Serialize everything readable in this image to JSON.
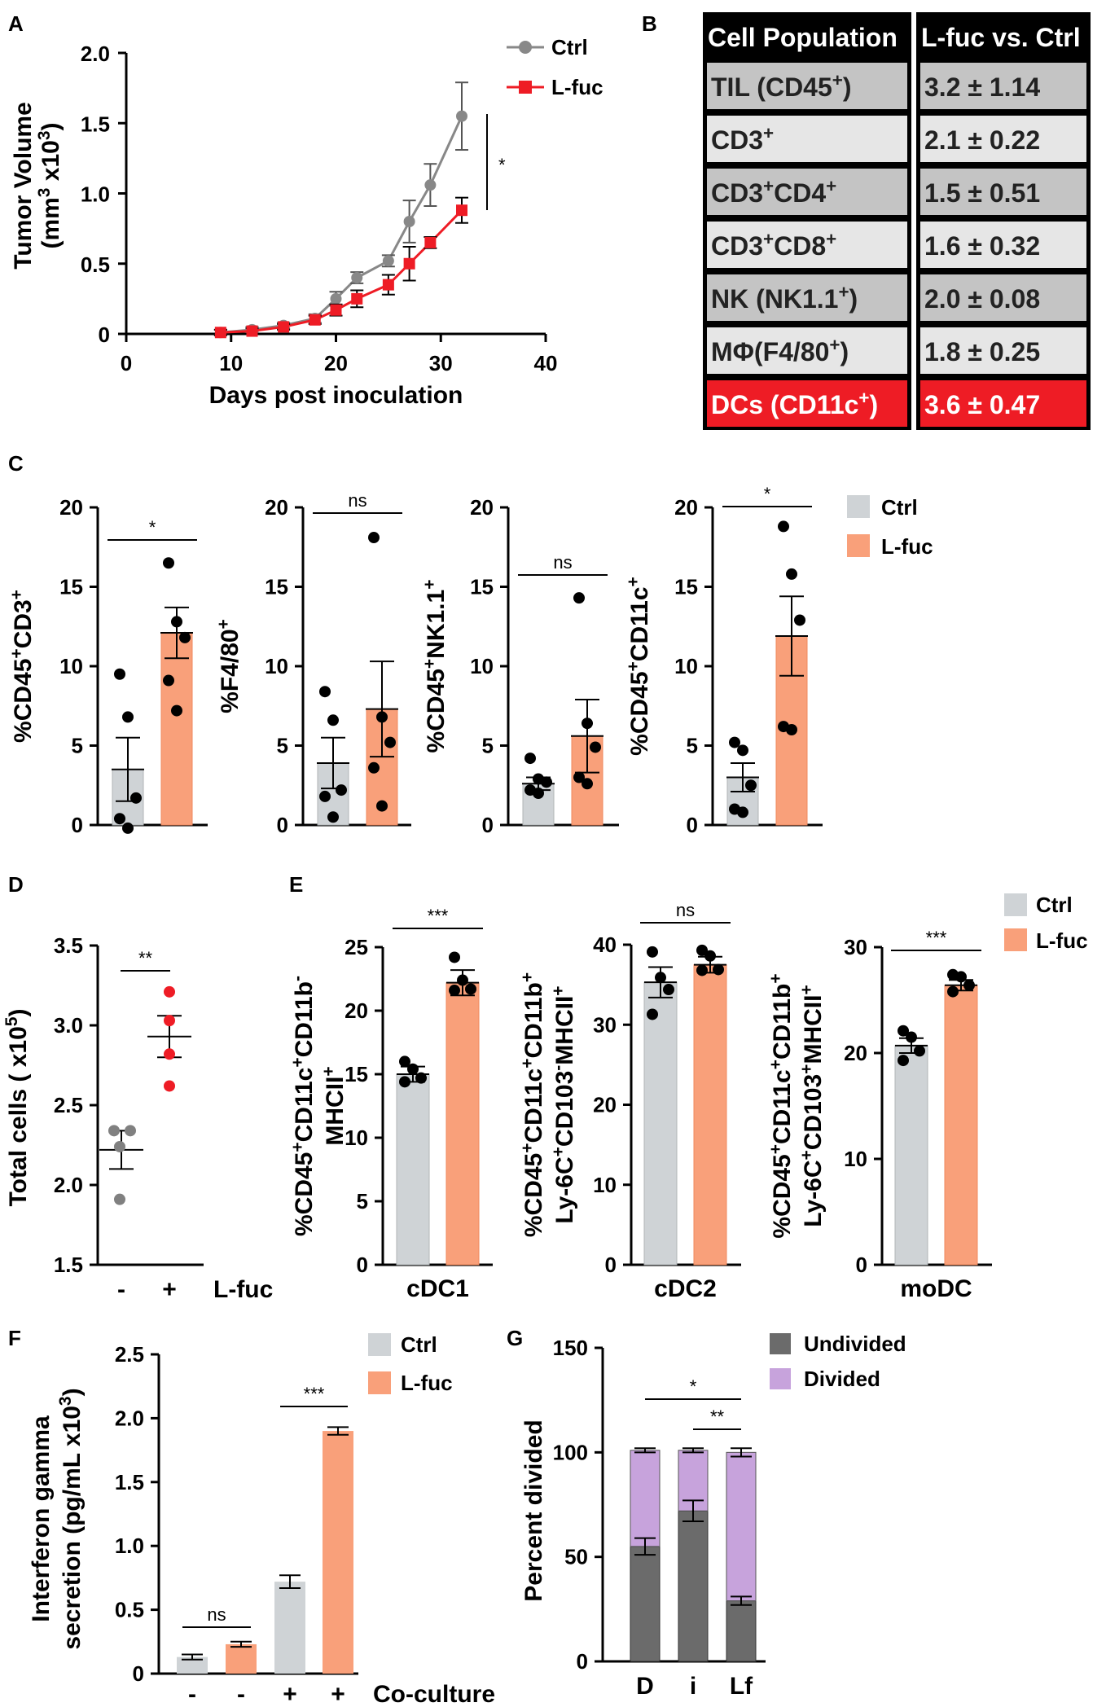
{
  "colors": {
    "ctrl": "#cfd3d6",
    "lfuc": "#f9a07a",
    "ctrl_line": "#888888",
    "lfuc_line": "#ee1c25",
    "dot_red": "#ee1c25",
    "undivided": "#6b6b6b",
    "divided": "#c7a3dc",
    "table_dark": "#000000",
    "table_cell1": "#c4c4c4",
    "table_cell2": "#e6e6e6",
    "table_red": "#ee1c25"
  },
  "panel_labels": [
    "A",
    "B",
    "C",
    "D",
    "E",
    "F",
    "G"
  ],
  "chart_data": [
    {
      "id": "A",
      "type": "line",
      "ylabel": "Tumor Volume (mm³ x10³)",
      "xlabel": "Days post inoculation",
      "xlim": [
        0,
        40
      ],
      "ylim": [
        0,
        2.0
      ],
      "xticks": [
        "0",
        "10",
        "20",
        "30",
        "40"
      ],
      "yticks": [
        "0",
        "0.5",
        "1.0",
        "1.5",
        "2.0"
      ],
      "significance": "*",
      "series": [
        {
          "name": "Ctrl",
          "x": [
            9,
            12,
            15,
            18,
            20,
            22,
            25,
            27,
            29,
            32
          ],
          "y": [
            0.01,
            0.03,
            0.06,
            0.11,
            0.25,
            0.4,
            0.52,
            0.8,
            1.06,
            1.55
          ],
          "err": [
            0.02,
            0.02,
            0.02,
            0.03,
            0.05,
            0.04,
            0.04,
            0.15,
            0.15,
            0.24
          ]
        },
        {
          "name": "L-fuc",
          "x": [
            9,
            12,
            15,
            18,
            20,
            22,
            25,
            27,
            29,
            32
          ],
          "y": [
            0.01,
            0.02,
            0.05,
            0.1,
            0.17,
            0.25,
            0.35,
            0.5,
            0.65,
            0.88
          ],
          "err": [
            0.02,
            0.02,
            0.02,
            0.03,
            0.04,
            0.06,
            0.07,
            0.12,
            0.04,
            0.09
          ]
        }
      ]
    },
    {
      "id": "B",
      "type": "table",
      "header": [
        "Cell Population",
        "L-fuc vs. Ctrl"
      ],
      "rows": [
        [
          "TIL (CD45⁺)",
          "3.2 ± 1.14"
        ],
        [
          "CD3⁺",
          "2.1 ± 0.22"
        ],
        [
          "CD3⁺CD4⁺",
          "1.5 ± 0.51"
        ],
        [
          "CD3⁺CD8⁺",
          "1.6 ± 0.32"
        ],
        [
          "NK (NK1.1⁺)",
          "2.0 ± 0.08"
        ],
        [
          "MΦ(F4/80⁺)",
          "1.8 ± 0.25"
        ],
        [
          "DCs (CD11c⁺)",
          "3.6 ± 0.47"
        ]
      ]
    },
    {
      "id": "C",
      "type": "bar",
      "legend": [
        "Ctrl",
        "L-fuc"
      ],
      "subplots": [
        {
          "ylabel": "%CD45⁺CD3⁺",
          "ylim": [
            0,
            20
          ],
          "yticks": [
            "0",
            "5",
            "10",
            "15",
            "20"
          ],
          "values": [
            3.5,
            12.1
          ],
          "err": [
            2.0,
            1.6
          ],
          "sig": "*",
          "points": [
            [
              9.5,
              6.8,
              1.7,
              0.4,
              -0.2
            ],
            [
              16.5,
              12.8,
              11.8,
              9.1,
              7.2
            ]
          ]
        },
        {
          "ylabel": "%F4/80⁺",
          "ylim": [
            0,
            20
          ],
          "yticks": [
            "0",
            "5",
            "10",
            "15",
            "20"
          ],
          "values": [
            3.9,
            7.3
          ],
          "err": [
            1.6,
            3.0
          ],
          "sig": "ns",
          "points": [
            [
              8.4,
              6.6,
              2.2,
              1.8,
              0.5
            ],
            [
              18.1,
              6.8,
              5.2,
              3.6,
              1.2
            ]
          ]
        },
        {
          "ylabel": "%CD45⁺NK1.1⁺",
          "ylim": [
            0,
            20
          ],
          "yticks": [
            "0",
            "5",
            "10",
            "15",
            "20"
          ],
          "values": [
            2.6,
            5.6
          ],
          "err": [
            0.4,
            2.3
          ],
          "sig": "ns",
          "points": [
            [
              4.2,
              2.9,
              2.7,
              2.2,
              2.0
            ],
            [
              14.3,
              6.4,
              4.9,
              3.0,
              2.6
            ]
          ]
        },
        {
          "ylabel": "%CD45⁺CD11c⁺",
          "ylim": [
            0,
            20
          ],
          "yticks": [
            "0",
            "5",
            "10",
            "15",
            "20"
          ],
          "values": [
            3.0,
            11.9
          ],
          "err": [
            0.9,
            2.5
          ],
          "sig": "*",
          "points": [
            [
              5.2,
              4.7,
              2.5,
              1.0,
              0.8
            ],
            [
              18.8,
              15.8,
              12.9,
              6.2,
              6.0
            ]
          ]
        }
      ]
    },
    {
      "id": "D",
      "type": "scatter",
      "ylabel": "Total cells ( x10⁵)",
      "ylim": [
        1.5,
        3.5
      ],
      "yticks": [
        "1.5",
        "2.0",
        "2.5",
        "3.0",
        "3.5"
      ],
      "categories": [
        "-",
        "+"
      ],
      "xtitle": "L-fuc",
      "means": [
        2.22,
        2.93
      ],
      "err": [
        0.12,
        0.13
      ],
      "sig": "**",
      "points": [
        [
          2.34,
          2.34,
          2.24,
          1.91
        ],
        [
          3.21,
          3.03,
          2.82,
          2.62
        ]
      ]
    },
    {
      "id": "E",
      "type": "bar",
      "legend": [
        "Ctrl",
        "L-fuc"
      ],
      "subplots": [
        {
          "ylabel": "%CD45⁺CD11c⁺CD11b⁻ MHCII⁺",
          "category": "cDC1",
          "ylim": [
            0,
            25
          ],
          "yticks": [
            "0",
            "5",
            "10",
            "15",
            "20",
            "25"
          ],
          "values": [
            15.0,
            22.2
          ],
          "err": [
            0.6,
            1.0
          ],
          "sig": "***",
          "points": [
            [
              16.0,
              15.4,
              14.7,
              14.4
            ],
            [
              24.2,
              22.4,
              21.7,
              21.6
            ]
          ]
        },
        {
          "ylabel": "%CD45⁺CD11c⁺CD11b⁺ Ly-6C⁺CD103⁻MHCII⁺",
          "category": "cDC2",
          "ylim": [
            0,
            40
          ],
          "yticks": [
            "0",
            "10",
            "20",
            "30",
            "40"
          ],
          "values": [
            35.3,
            37.5
          ],
          "err": [
            1.9,
            1.0
          ],
          "sig": "ns",
          "points": [
            [
              39.1,
              35.9,
              34.4,
              31.3
            ],
            [
              39.3,
              38.6,
              36.9,
              36.8
            ]
          ]
        },
        {
          "ylabel": "%CD45⁺CD11c⁺CD11b⁺ Ly-6C⁺CD103⁺MHCII⁺",
          "category": "moDC",
          "ylim": [
            0,
            30
          ],
          "yticks": [
            "0",
            "10",
            "20",
            "30"
          ],
          "values": [
            20.7,
            26.4
          ],
          "err": [
            0.7,
            0.5
          ],
          "sig": "***",
          "points": [
            [
              22.1,
              21.5,
              20.2,
              19.3
            ],
            [
              27.4,
              27.2,
              26.4,
              25.8
            ]
          ]
        }
      ]
    },
    {
      "id": "F",
      "type": "bar",
      "ylabel": "Interferon gamma secretion (pg/mL x10³)",
      "ylim": [
        0,
        2.5
      ],
      "yticks": [
        "0",
        "0.5",
        "1.0",
        "1.5",
        "2.0",
        "2.5"
      ],
      "categories": [
        "-",
        "-",
        "+",
        "+"
      ],
      "xtitle": "Co-culture",
      "legend": [
        "Ctrl",
        "L-fuc"
      ],
      "groups": [
        "ctrl",
        "lfuc",
        "ctrl",
        "lfuc"
      ],
      "values": [
        0.13,
        0.23,
        0.72,
        1.9
      ],
      "err": [
        0.02,
        0.02,
        0.05,
        0.03
      ],
      "sig": [
        {
          "label": "ns",
          "bars": [
            0,
            1
          ]
        },
        {
          "label": "***",
          "bars": [
            2,
            3
          ]
        }
      ]
    },
    {
      "id": "G",
      "type": "bar",
      "ylabel": "Percent divided",
      "ylim": [
        0,
        150
      ],
      "yticks": [
        "0",
        "50",
        "100",
        "150"
      ],
      "categories": [
        "D",
        "i",
        "Lf"
      ],
      "series": [
        {
          "name": "Undivided",
          "values": [
            55,
            72,
            29
          ],
          "err": [
            4,
            5,
            2
          ]
        },
        {
          "name": "Divided",
          "values": [
            46,
            29,
            71
          ],
          "err": [
            1,
            1,
            2
          ]
        }
      ],
      "sig": [
        {
          "label": "*",
          "bars": [
            0,
            2
          ]
        },
        {
          "label": "**",
          "bars": [
            1,
            2
          ]
        }
      ]
    }
  ]
}
